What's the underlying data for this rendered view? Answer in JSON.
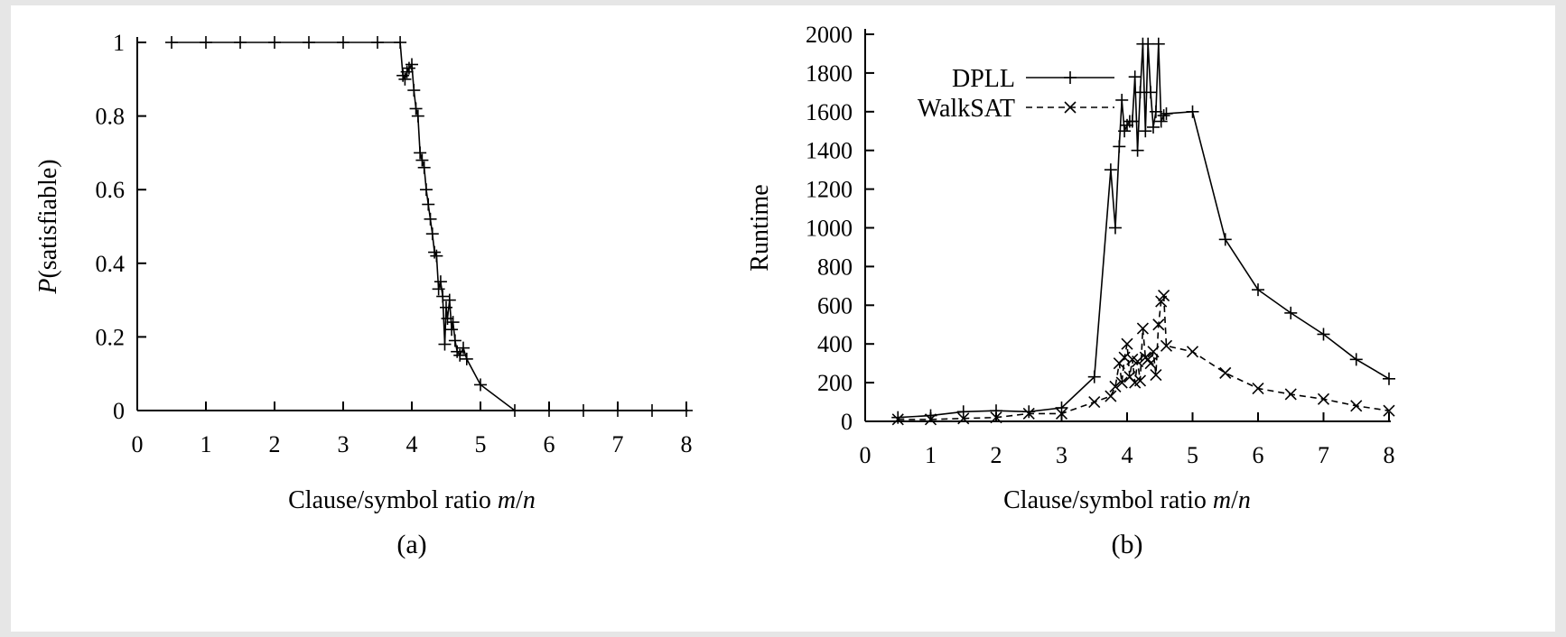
{
  "colors": {
    "background": "#e6e6e6",
    "panel": "#ffffff",
    "ink": "#000000"
  },
  "chart_data": [
    {
      "type": "line",
      "panel_label": "(a)",
      "xlabel": "Clause/symbol ratio m/n",
      "xlabel_parts": [
        "Clause/symbol ratio ",
        "m",
        "/",
        "n"
      ],
      "ylabel": "P(satisfiable)",
      "ylabel_parts": [
        "P",
        "(satisfiable)"
      ],
      "xlim": [
        0,
        8
      ],
      "ylim": [
        0,
        1
      ],
      "xticks": [
        "0",
        "1",
        "2",
        "3",
        "4",
        "5",
        "6",
        "7",
        "8"
      ],
      "yticks": [
        "0",
        "0.2",
        "0.4",
        "0.6",
        "0.8",
        "1"
      ],
      "grid": false,
      "reference_line": {
        "y": 0,
        "style": "dotted"
      },
      "series": [
        {
          "marker": "plus",
          "line": "solid",
          "x": [
            0.5,
            1.0,
            1.5,
            2.0,
            2.5,
            3.0,
            3.5,
            3.83,
            3.87,
            3.9,
            3.93,
            3.96,
            4.0,
            4.03,
            4.06,
            4.09,
            4.12,
            4.15,
            4.18,
            4.21,
            4.24,
            4.27,
            4.3,
            4.33,
            4.36,
            4.39,
            4.42,
            4.45,
            4.48,
            4.5,
            4.52,
            4.55,
            4.58,
            4.6,
            4.63,
            4.66,
            4.7,
            4.75,
            4.8,
            5.0,
            5.5,
            6.0,
            6.5,
            7.0,
            7.5,
            8.0
          ],
          "y": [
            1.0,
            1.0,
            1.0,
            1.0,
            1.0,
            1.0,
            1.0,
            1.0,
            0.91,
            0.9,
            0.92,
            0.93,
            0.94,
            0.87,
            0.82,
            0.8,
            0.7,
            0.68,
            0.66,
            0.6,
            0.56,
            0.52,
            0.48,
            0.43,
            0.42,
            0.33,
            0.35,
            0.31,
            0.18,
            0.28,
            0.25,
            0.3,
            0.22,
            0.24,
            0.19,
            0.16,
            0.15,
            0.17,
            0.14,
            0.07,
            0.0,
            0.0,
            0.0,
            0.0,
            0.0,
            0.0
          ]
        }
      ]
    },
    {
      "type": "line",
      "panel_label": "(b)",
      "xlabel": "Clause/symbol ratio m/n",
      "xlabel_parts": [
        "Clause/symbol ratio ",
        "m",
        "/",
        "n"
      ],
      "ylabel": "Runtime",
      "xlim": [
        0,
        8
      ],
      "ylim": [
        0,
        2000
      ],
      "xticks": [
        "0",
        "1",
        "2",
        "3",
        "4",
        "5",
        "6",
        "7",
        "8"
      ],
      "yticks": [
        "0",
        "200",
        "400",
        "600",
        "800",
        "1000",
        "1200",
        "1400",
        "1600",
        "1800",
        "2000"
      ],
      "grid": false,
      "legend_position": "top-left",
      "series": [
        {
          "name": "DPLL",
          "marker": "plus",
          "line": "solid",
          "x": [
            0.5,
            1.0,
            1.5,
            2.0,
            2.5,
            3.0,
            3.5,
            3.75,
            3.82,
            3.88,
            3.92,
            3.96,
            4.0,
            4.04,
            4.08,
            4.12,
            4.16,
            4.2,
            4.24,
            4.28,
            4.32,
            4.36,
            4.4,
            4.44,
            4.48,
            4.52,
            4.56,
            4.6,
            5.0,
            5.5,
            6.0,
            6.5,
            7.0,
            7.5,
            8.0
          ],
          "y": [
            20,
            30,
            50,
            55,
            50,
            70,
            230,
            1300,
            1000,
            1420,
            1660,
            1500,
            1530,
            1550,
            1550,
            1780,
            1400,
            1700,
            1950,
            1500,
            1950,
            1700,
            1520,
            1600,
            1950,
            1550,
            1580,
            1590,
            1600,
            940,
            680,
            560,
            450,
            320,
            220
          ]
        },
        {
          "name": "WalkSAT",
          "marker": "x",
          "line": "dashed",
          "x": [
            0.5,
            1.0,
            1.5,
            2.0,
            2.5,
            3.0,
            3.5,
            3.75,
            3.82,
            3.88,
            3.92,
            3.96,
            4.0,
            4.04,
            4.08,
            4.12,
            4.16,
            4.2,
            4.24,
            4.28,
            4.32,
            4.36,
            4.4,
            4.44,
            4.48,
            4.52,
            4.56,
            4.6,
            5.0,
            5.5,
            6.0,
            6.5,
            7.0,
            7.5,
            8.0
          ],
          "y": [
            10,
            10,
            15,
            20,
            40,
            40,
            100,
            130,
            180,
            300,
            200,
            330,
            400,
            230,
            320,
            200,
            310,
            210,
            480,
            330,
            320,
            300,
            360,
            240,
            500,
            620,
            650,
            390,
            360,
            250,
            170,
            140,
            115,
            80,
            55
          ]
        }
      ]
    }
  ]
}
